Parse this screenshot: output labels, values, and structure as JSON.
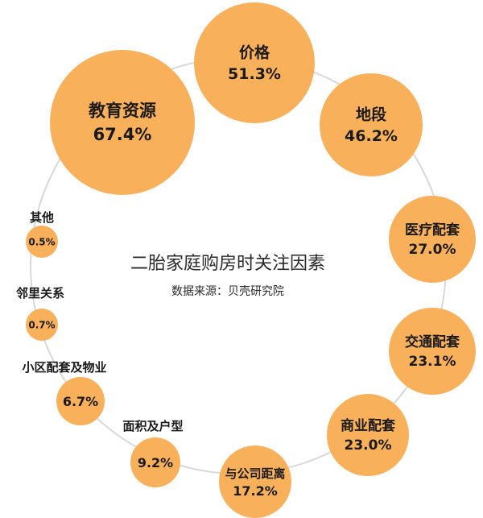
{
  "chart_data": {
    "type": "bubble",
    "title": "二胎家庭购房时关注因素",
    "subtitle": "数据来源：贝壳研究院",
    "unit": "%",
    "categories": [
      "价格",
      "地段",
      "医疗配套",
      "交通配套",
      "商业配套",
      "与公司距离",
      "面积及户型",
      "小区配套及物业",
      "邻里关系",
      "其他",
      "教育资源"
    ],
    "values": [
      51.3,
      46.2,
      27.0,
      23.1,
      23.0,
      17.2,
      9.2,
      6.7,
      0.7,
      0.5,
      67.4
    ],
    "value_labels": [
      "51.3%",
      "46.2%",
      "27.0%",
      "23.1%",
      "23.0%",
      "17.2%",
      "9.2%",
      "6.7%",
      "0.7%",
      "0.5%",
      "67.4%"
    ],
    "colors": {
      "bubble": "#F9B05A",
      "ring": "#D8D8D8",
      "text": "#1a1a1a"
    }
  }
}
